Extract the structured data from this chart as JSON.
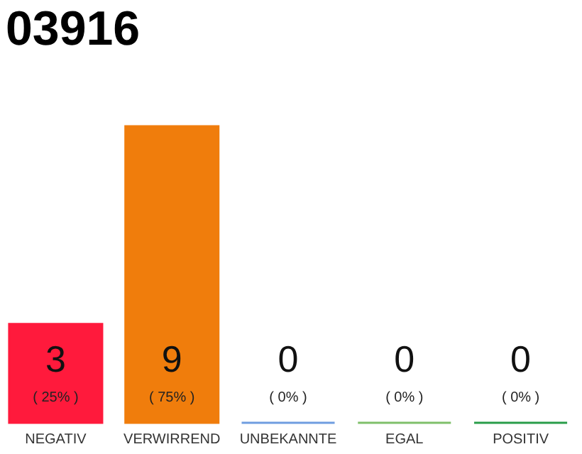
{
  "chart_data": {
    "type": "bar",
    "title": "03916",
    "categories": [
      "NEGATIV",
      "VERWIRREND",
      "UNBEKANNTE",
      "EGAL",
      "POSITIV"
    ],
    "colors": [
      "#ff1a3c",
      "#f07d0c",
      "#6f9de0",
      "#7fbf6a",
      "#2a9d4a"
    ],
    "values": [
      3,
      9,
      0,
      0,
      0
    ],
    "data_labels": true,
    "annotations": [
      "( 25% )",
      "( 75% )",
      "( 0% )",
      "( 0% )",
      "( 0% )"
    ],
    "tick_labels": "x",
    "grid": false
  }
}
